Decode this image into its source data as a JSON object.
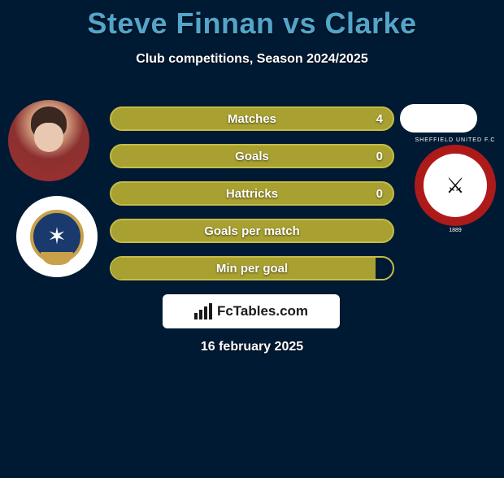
{
  "title": "Steve Finnan vs Clarke",
  "subtitle": "Club competitions, Season 2024/2025",
  "brand": "FcTables.com",
  "date": "16 february 2025",
  "colors": {
    "background": "#001a33",
    "title": "#53a5c9",
    "bar_fill": "#a8a030",
    "bar_border": "#c4bc48",
    "text": "#ffffff",
    "brand_bg": "#ffffff",
    "club1_primary": "#1a3a6e",
    "club1_accent": "#c9a14a",
    "club2_primary": "#c41e1e"
  },
  "typography": {
    "title_fontsize": 36,
    "subtitle_fontsize": 16,
    "bar_label_fontsize": 15,
    "brand_fontsize": 17,
    "date_fontsize": 16
  },
  "bars": [
    {
      "label": "Matches",
      "value": "4",
      "fill_pct": 100,
      "style": "full"
    },
    {
      "label": "Goals",
      "value": "0",
      "fill_pct": 100,
      "style": "full"
    },
    {
      "label": "Hattricks",
      "value": "0",
      "fill_pct": 100,
      "style": "full"
    },
    {
      "label": "Goals per match",
      "value": "",
      "fill_pct": 100,
      "style": "full"
    },
    {
      "label": "Min per goal",
      "value": "",
      "fill_pct": 94,
      "style": "partial"
    }
  ],
  "players": {
    "left": {
      "name": "Steve Finnan"
    },
    "right": {
      "name": "Clarke"
    }
  },
  "clubs": {
    "left": {
      "name": "Portsmouth",
      "badge_text": "✶"
    },
    "right": {
      "name": "Sheffield United",
      "ring_top": "SHEFFIELD UNITED F.C",
      "year": "1889",
      "swords": "⚔"
    }
  }
}
